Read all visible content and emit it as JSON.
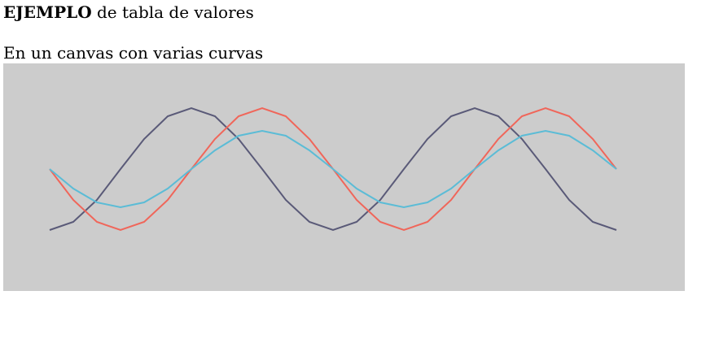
{
  "heading": {
    "bold": "EJEMPLO",
    "rest": "de tabla de valores"
  },
  "caption": "En un canvas con varias curvas",
  "chart_data": {
    "type": "line",
    "background": "#cccccc",
    "xlim": [
      0,
      837
    ],
    "ylim": [
      280,
      0
    ],
    "x": [
      57,
      86,
      115,
      144,
      173,
      202,
      231,
      260,
      289,
      318,
      347,
      376,
      405,
      434,
      463,
      492,
      521,
      550,
      579,
      608,
      637,
      666,
      695,
      724,
      753
    ],
    "series": [
      {
        "color": "#5a5a78",
        "values": [
          205,
          195,
          168,
          130,
          93,
          65,
          55,
          65,
          93,
          130,
          168,
          195,
          205,
          195,
          168,
          130,
          93,
          65,
          55,
          65,
          93,
          130,
          168,
          195,
          205
        ]
      },
      {
        "color": "#f0665a",
        "values": [
          130,
          168,
          195,
          205,
          195,
          168,
          130,
          93,
          65,
          55,
          65,
          93,
          130,
          168,
          195,
          205,
          195,
          168,
          130,
          93,
          65,
          55,
          65,
          93,
          130
        ]
      },
      {
        "color": "#5bbcd6",
        "values": [
          130,
          154,
          171,
          177,
          171,
          154,
          130,
          107,
          89,
          83,
          89,
          107,
          130,
          154,
          171,
          177,
          171,
          154,
          130,
          107,
          89,
          83,
          89,
          107,
          130
        ]
      }
    ]
  }
}
